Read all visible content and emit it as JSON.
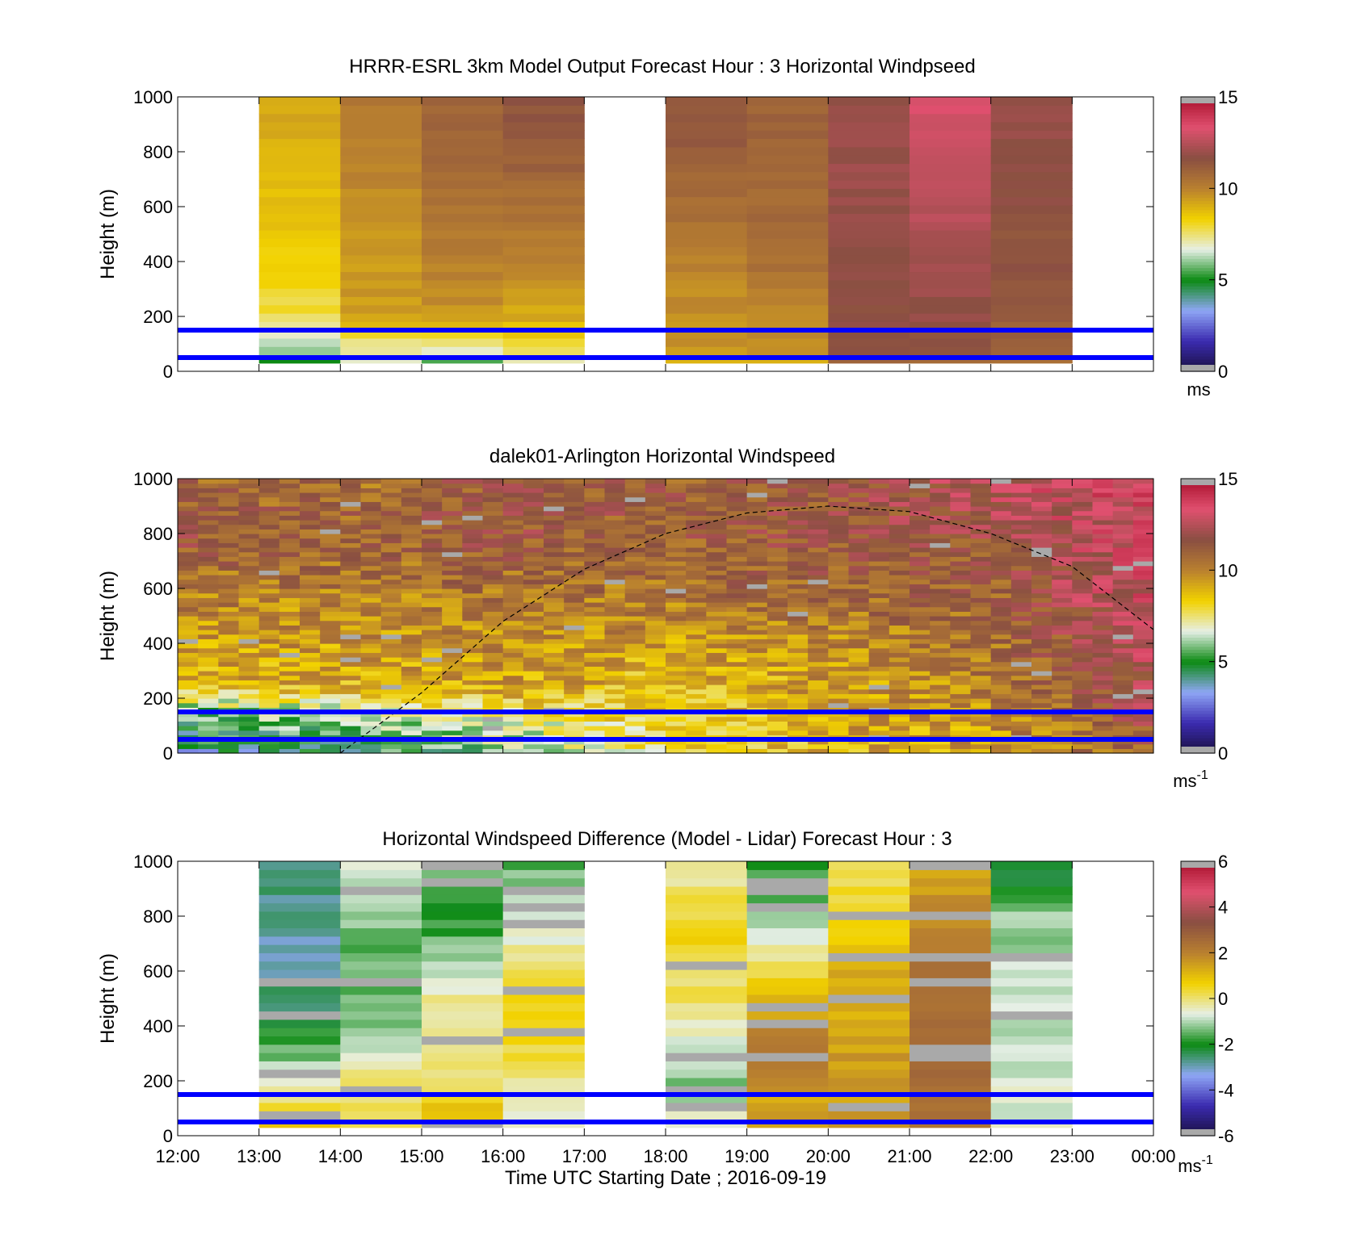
{
  "chart_data": [
    {
      "type": "heatmap",
      "title": "HRRR-ESRL 3km Model Output   Forecast Hour : 3 Horizontal Windpseed",
      "ylabel": "Height (m)",
      "ylim": [
        0,
        1000
      ],
      "yticks": [
        "0",
        "200",
        "400",
        "600",
        "800",
        "1000"
      ],
      "colorbar": {
        "min": 0,
        "max": 15,
        "ticks": [
          "0",
          "5",
          "10",
          "15"
        ],
        "unit": "ms"
      },
      "reference_lines_m": [
        50,
        150
      ],
      "hours_start": [
        13,
        14,
        15,
        16,
        18,
        19,
        20,
        21,
        22
      ],
      "profiles": [
        [
          [
            0,
            3
          ],
          [
            60,
            6
          ],
          [
            200,
            7.8
          ],
          [
            400,
            8.3
          ],
          [
            700,
            8.8
          ],
          [
            1000,
            9.2
          ]
        ],
        [
          [
            0,
            6
          ],
          [
            110,
            7.6
          ],
          [
            200,
            9.4
          ],
          [
            500,
            9.6
          ],
          [
            800,
            10
          ],
          [
            1000,
            10.2
          ]
        ],
        [
          [
            0,
            4
          ],
          [
            80,
            7
          ],
          [
            200,
            9.6
          ],
          [
            500,
            10.2
          ],
          [
            800,
            10.8
          ],
          [
            1000,
            11
          ]
        ],
        [
          [
            0,
            5.5
          ],
          [
            60,
            7.5
          ],
          [
            200,
            9.2
          ],
          [
            500,
            10.2
          ],
          [
            800,
            11.2
          ],
          [
            1000,
            11.5
          ]
        ],
        [
          [
            0,
            7.5
          ],
          [
            60,
            9.5
          ],
          [
            400,
            10
          ],
          [
            800,
            11.2
          ],
          [
            1000,
            11.3
          ]
        ],
        [
          [
            0,
            7.6
          ],
          [
            60,
            9.5
          ],
          [
            400,
            10.5
          ],
          [
            800,
            11
          ],
          [
            1000,
            11
          ]
        ],
        [
          [
            0,
            9
          ],
          [
            60,
            11.5
          ],
          [
            400,
            11.8
          ],
          [
            800,
            12
          ],
          [
            1000,
            12
          ]
        ],
        [
          [
            0,
            9
          ],
          [
            60,
            11.5
          ],
          [
            400,
            12.2
          ],
          [
            700,
            12.8
          ],
          [
            1000,
            13.2
          ]
        ],
        [
          [
            0,
            9.5
          ],
          [
            60,
            11
          ],
          [
            400,
            11.5
          ],
          [
            800,
            11.8
          ],
          [
            1000,
            12
          ]
        ]
      ]
    },
    {
      "type": "heatmap",
      "title": "dalek01-Arlington  Horizontal Windspeed",
      "ylabel": "Height (m)",
      "ylim": [
        0,
        1000
      ],
      "yticks": [
        "0",
        "200",
        "400",
        "600",
        "800",
        "1000"
      ],
      "colorbar": {
        "min": 0,
        "max": 15,
        "ticks": [
          "0",
          "5",
          "10",
          "15"
        ],
        "unit": "ms",
        "unit_superscript": "-1"
      },
      "reference_lines_m": [
        50,
        150
      ],
      "xlim_hours": [
        12,
        24
      ],
      "boundary_layer_curve": {
        "x_hours": [
          14,
          15,
          16,
          17,
          18,
          19,
          20,
          21,
          22,
          23,
          24
        ],
        "height_m": [
          0,
          220,
          480,
          670,
          800,
          875,
          900,
          880,
          800,
          680,
          450
        ]
      },
      "profiles_hourly": [
        {
          "hour": 12,
          "profile": [
            [
              0,
              4
            ],
            [
              150,
              5.5
            ],
            [
              250,
              8.8
            ],
            [
              500,
              9.8
            ],
            [
              800,
              11.5
            ],
            [
              1000,
              11
            ]
          ]
        },
        {
          "hour": 14,
          "profile": [
            [
              0,
              4.5
            ],
            [
              150,
              6.5
            ],
            [
              250,
              9
            ],
            [
              500,
              9.8
            ],
            [
              800,
              11
            ],
            [
              1000,
              10.5
            ]
          ]
        },
        {
          "hour": 16,
          "profile": [
            [
              0,
              5.5
            ],
            [
              150,
              7.5
            ],
            [
              250,
              9.4
            ],
            [
              500,
              10
            ],
            [
              800,
              11.5
            ],
            [
              1000,
              11.5
            ]
          ]
        },
        {
          "hour": 18,
          "profile": [
            [
              0,
              8
            ],
            [
              150,
              8.2
            ],
            [
              300,
              8.8
            ],
            [
              500,
              10
            ],
            [
              800,
              11.2
            ],
            [
              1000,
              11.2
            ]
          ]
        },
        {
          "hour": 20,
          "profile": [
            [
              0,
              8.8
            ],
            [
              150,
              9.2
            ],
            [
              400,
              9.8
            ],
            [
              600,
              11
            ],
            [
              800,
              11.5
            ],
            [
              1000,
              11.5
            ]
          ]
        },
        {
          "hour": 22,
          "profile": [
            [
              0,
              9.2
            ],
            [
              150,
              9.8
            ],
            [
              400,
              10.5
            ],
            [
              600,
              11
            ],
            [
              800,
              11.8
            ],
            [
              1000,
              12.5
            ]
          ]
        },
        {
          "hour": 24,
          "profile": [
            [
              0,
              11
            ],
            [
              150,
              12
            ],
            [
              400,
              12.8
            ],
            [
              600,
              13.2
            ],
            [
              800,
              13.5
            ],
            [
              1000,
              13.5
            ]
          ]
        }
      ]
    },
    {
      "type": "heatmap",
      "title": "Horizontal Windspeed Difference (Model - Lidar) Forecast Hour : 3",
      "xlabel": "Time UTC  Starting Date ; 2016-09-19",
      "ylabel": "Height (m)",
      "ylim": [
        0,
        1000
      ],
      "yticks": [
        "0",
        "200",
        "400",
        "600",
        "800",
        "1000"
      ],
      "xticks": [
        "12:00",
        "13:00",
        "14:00",
        "15:00",
        "16:00",
        "17:00",
        "18:00",
        "19:00",
        "20:00",
        "21:00",
        "22:00",
        "23:00",
        "00:00"
      ],
      "colorbar": {
        "min": -6,
        "max": 6,
        "ticks": [
          "-6",
          "-4",
          "-2",
          "0",
          "2",
          "4",
          "6"
        ],
        "unit": "ms",
        "unit_superscript": "-1"
      },
      "reference_lines_m": [
        50,
        150
      ],
      "hours_start": [
        13,
        14,
        15,
        16,
        18,
        19,
        20,
        21,
        22
      ],
      "profiles": [
        [
          [
            0,
            1
          ],
          [
            150,
            0
          ],
          [
            300,
            -1.5
          ],
          [
            600,
            -3
          ],
          [
            1000,
            -2.5
          ]
        ],
        [
          [
            0,
            0.3
          ],
          [
            200,
            0
          ],
          [
            400,
            -1.5
          ],
          [
            700,
            -1.5
          ],
          [
            1000,
            -0.5
          ]
        ],
        [
          [
            0,
            1.5
          ],
          [
            200,
            0
          ],
          [
            500,
            -0.2
          ],
          [
            800,
            -2
          ],
          [
            1000,
            -1
          ]
        ],
        [
          [
            0,
            -0.5
          ],
          [
            200,
            -0.3
          ],
          [
            400,
            0.8
          ],
          [
            600,
            0.3
          ],
          [
            800,
            -1
          ],
          [
            1000,
            -1.5
          ]
        ],
        [
          [
            0,
            -0.5
          ],
          [
            200,
            -1.2
          ],
          [
            500,
            0
          ],
          [
            700,
            0.6
          ],
          [
            900,
            0
          ],
          [
            1000,
            -0.5
          ]
        ],
        [
          [
            0,
            1.5
          ],
          [
            150,
            1.5
          ],
          [
            350,
            2.2
          ],
          [
            600,
            0.3
          ],
          [
            800,
            -1.2
          ],
          [
            1000,
            -1.8
          ]
        ],
        [
          [
            0,
            1.5
          ],
          [
            300,
            1.5
          ],
          [
            600,
            1.2
          ],
          [
            800,
            0.5
          ],
          [
            1000,
            0
          ]
        ],
        [
          [
            0,
            2.2
          ],
          [
            200,
            2.5
          ],
          [
            600,
            2.3
          ],
          [
            800,
            1.8
          ],
          [
            1000,
            1.5
          ]
        ],
        [
          [
            0,
            -0.5
          ],
          [
            200,
            -0.8
          ],
          [
            500,
            -0.8
          ],
          [
            800,
            -1.2
          ],
          [
            1000,
            -2.5
          ]
        ]
      ]
    }
  ],
  "colors": {
    "speed_scale": [
      "#1a1040",
      "#3b2bb0",
      "#8fa6f5",
      "#0b8a12",
      "#e6efe6",
      "#f2d200",
      "#b9802f",
      "#8a4f42",
      "#e0506f",
      "#a8102c"
    ],
    "diff_scale": [
      "#1a1040",
      "#3b2bb0",
      "#8fa6f5",
      "#0b8a12",
      "#e6efe6",
      "#f2d200",
      "#b9802f",
      "#8a4f42",
      "#e0506f",
      "#a8102c"
    ],
    "reference_line": "#0000ff",
    "missing_value": "#a9a9a9"
  }
}
